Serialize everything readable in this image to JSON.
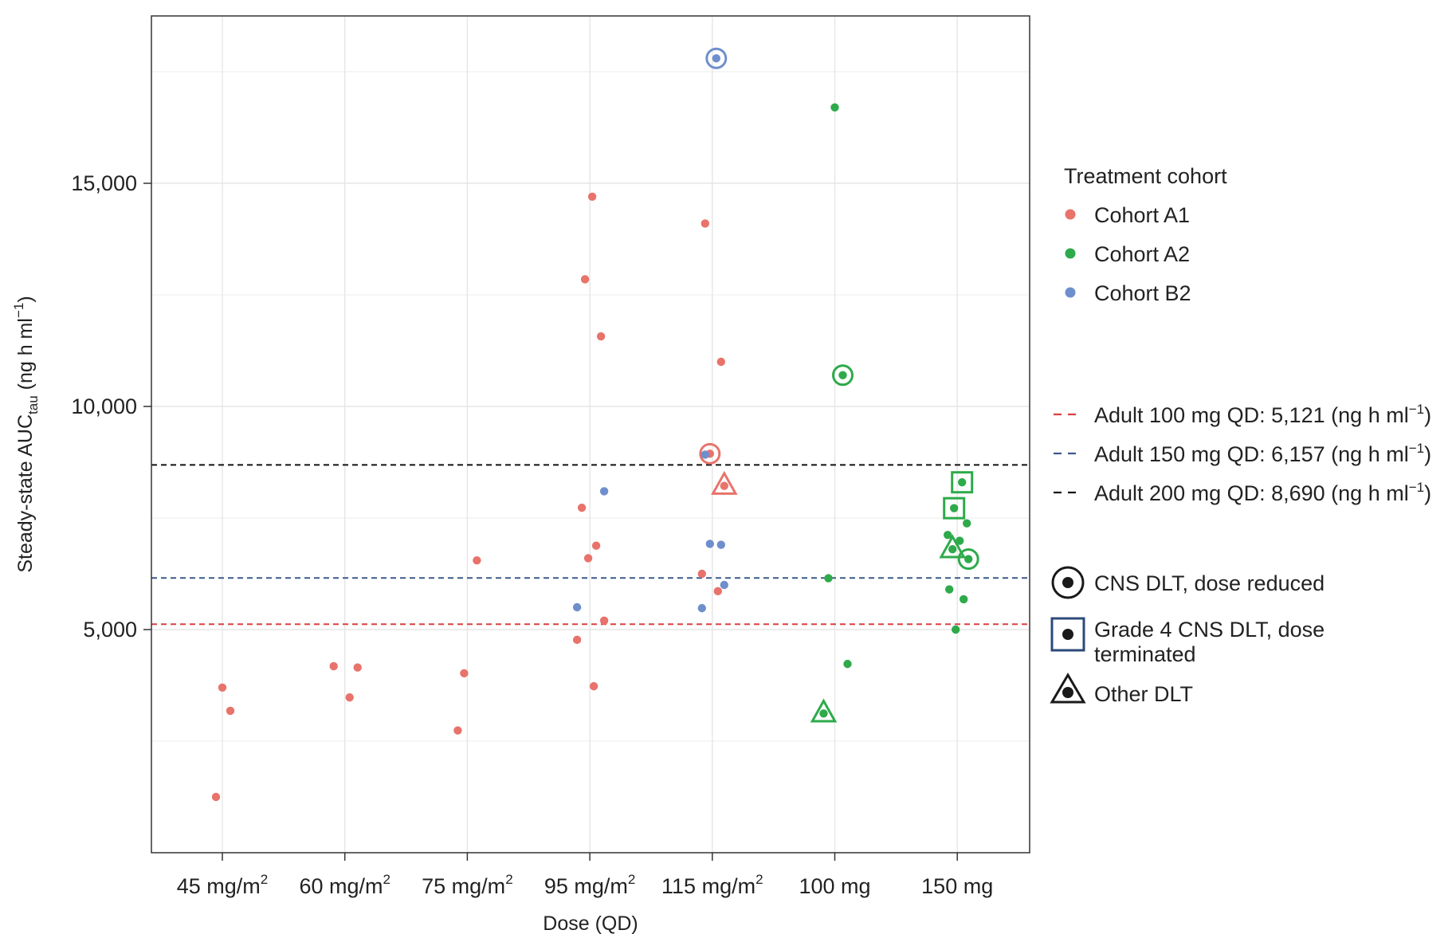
{
  "chart_data": {
    "type": "scatter",
    "title": "",
    "xlabel": "Dose (QD)",
    "ylabel": {
      "main": "Steady-state AUC",
      "subscript": "tau",
      "units_pre": "(ng h ml",
      "units_sup": "−1",
      "units_post": ")"
    },
    "ylim": [
      0,
      18300
    ],
    "grid": true,
    "categories": [
      {
        "label": "45 mg/m",
        "sup": "2"
      },
      {
        "label": "60 mg/m",
        "sup": "2"
      },
      {
        "label": "75 mg/m",
        "sup": "2"
      },
      {
        "label": "95 mg/m",
        "sup": "2"
      },
      {
        "label": "115 mg/m",
        "sup": "2"
      },
      {
        "label": "100 mg",
        "sup": ""
      },
      {
        "label": "150 mg",
        "sup": ""
      }
    ],
    "y_ticks": [
      {
        "value": 5000,
        "label": "5,000"
      },
      {
        "value": 10000,
        "label": "10,000"
      },
      {
        "value": 15000,
        "label": "15,000"
      }
    ],
    "series": [
      {
        "name": "Cohort A1",
        "color": "#e8736b",
        "points": [
          {
            "x": 0,
            "y": 3700
          },
          {
            "x": 0,
            "y": 3180
          },
          {
            "x": 0,
            "y": 1250
          },
          {
            "x": 1,
            "y": 4150
          },
          {
            "x": 1,
            "y": 4180
          },
          {
            "x": 1,
            "y": 3480
          },
          {
            "x": 2,
            "y": 4020
          },
          {
            "x": 2,
            "y": 6550
          },
          {
            "x": 2,
            "y": 2740
          },
          {
            "x": 3,
            "y": 14700
          },
          {
            "x": 3,
            "y": 12850
          },
          {
            "x": 3,
            "y": 11570
          },
          {
            "x": 3,
            "y": 7730
          },
          {
            "x": 3,
            "y": 6880
          },
          {
            "x": 3,
            "y": 6600
          },
          {
            "x": 3,
            "y": 5200
          },
          {
            "x": 3,
            "y": 4770
          },
          {
            "x": 3,
            "y": 3730
          },
          {
            "x": 4,
            "y": 14100
          },
          {
            "x": 4,
            "y": 11000
          },
          {
            "x": 4,
            "y": 8940,
            "marker": "circle"
          },
          {
            "x": 4,
            "y": 8220,
            "marker": "triangle"
          },
          {
            "x": 4,
            "y": 6250
          },
          {
            "x": 4,
            "y": 5860
          }
        ]
      },
      {
        "name": "Cohort A2",
        "color": "#2eaa4a",
        "points": [
          {
            "x": 5,
            "y": 16700
          },
          {
            "x": 5,
            "y": 10700,
            "marker": "circle"
          },
          {
            "x": 5,
            "y": 6150
          },
          {
            "x": 5,
            "y": 4230
          },
          {
            "x": 5,
            "y": 3120,
            "marker": "triangle"
          },
          {
            "x": 6,
            "y": 8300,
            "marker": "square"
          },
          {
            "x": 6,
            "y": 7720,
            "marker": "square"
          },
          {
            "x": 6,
            "y": 7380
          },
          {
            "x": 6,
            "y": 7120
          },
          {
            "x": 6,
            "y": 6990
          },
          {
            "x": 6,
            "y": 6800,
            "marker": "triangle"
          },
          {
            "x": 6,
            "y": 6580,
            "marker": "circle"
          },
          {
            "x": 6,
            "y": 5900
          },
          {
            "x": 6,
            "y": 5680
          },
          {
            "x": 6,
            "y": 5000
          }
        ]
      },
      {
        "name": "Cohort B2",
        "color": "#6f8fcc",
        "points": [
          {
            "x": 3,
            "y": 8100
          },
          {
            "x": 3,
            "y": 5500
          },
          {
            "x": 4,
            "y": 17800,
            "marker": "circle"
          },
          {
            "x": 4,
            "y": 8920
          },
          {
            "x": 4,
            "y": 6900
          },
          {
            "x": 4,
            "y": 6920
          },
          {
            "x": 4,
            "y": 6000
          },
          {
            "x": 4,
            "y": 5480
          }
        ]
      }
    ],
    "reference_lines": [
      {
        "label": "Adult 100 mg QD: 5,121 (ng h ml",
        "sup": "−1",
        "post": ")",
        "value": 5121,
        "color": "#d94040"
      },
      {
        "label": "Adult 150 mg QD: 6,157 (ng h ml",
        "sup": "−1",
        "post": ")",
        "value": 6157,
        "color": "#3b5a8c"
      },
      {
        "label": "Adult 200 mg QD: 8,690 (ng h ml",
        "sup": "−1",
        "post": ")",
        "value": 8690,
        "color": "#111111"
      }
    ],
    "legend": {
      "placement": "right",
      "cohort_title": "Treatment cohort",
      "cohorts": [
        {
          "label": "Cohort A1",
          "color": "#e8736b"
        },
        {
          "label": "Cohort A2",
          "color": "#2eaa4a"
        },
        {
          "label": "Cohort B2",
          "color": "#6f8fcc"
        }
      ],
      "markers": [
        {
          "type": "circle",
          "lines": [
            "CNS DLT, dose reduced"
          ]
        },
        {
          "type": "square",
          "lines": [
            "Grade 4 CNS DLT, dose",
            "terminated"
          ]
        },
        {
          "type": "triangle",
          "lines": [
            "Other DLT"
          ]
        }
      ]
    }
  }
}
